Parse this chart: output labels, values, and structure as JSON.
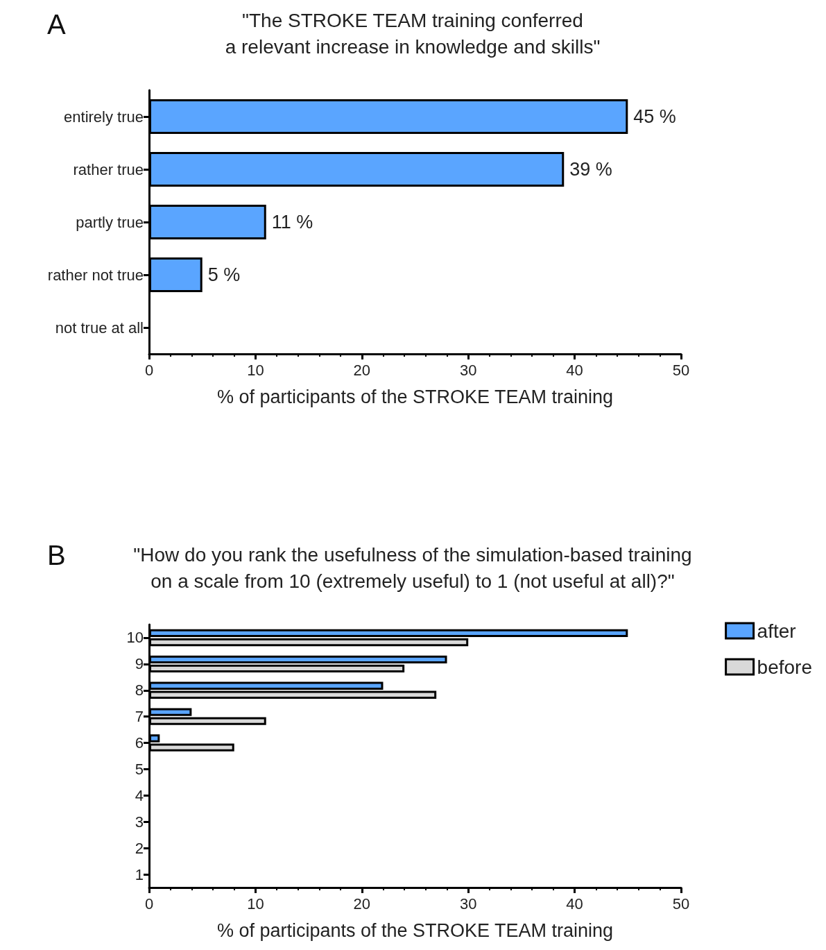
{
  "chart_data": [
    {
      "type": "bar",
      "orientation": "horizontal",
      "title": "\"The STROKE TEAM training conferred\na relevant increase in knowledge and skills\"",
      "annotations": [
        "A"
      ],
      "xlabel": "% of participants of the STROKE TEAM training",
      "categories": [
        "entirely true",
        "rather true",
        "partly true",
        "rather not true",
        "not true at all"
      ],
      "values": [
        45,
        39,
        11,
        5,
        null
      ],
      "color": "#5aa5ff",
      "value_labels": [
        "45 %",
        "39 %",
        "11 %",
        "5 %",
        null
      ],
      "xlim": [
        0,
        50
      ],
      "xticks": [
        0,
        10,
        20,
        30,
        40,
        50
      ],
      "grid": false,
      "legend": false
    },
    {
      "type": "bar",
      "orientation": "horizontal",
      "title": "\"How do you rank the usefulness of the simulation-based training\non a scale from 10 (extremely useful) to 1 (not useful at all)?\"",
      "annotations": [
        "B"
      ],
      "xlabel": "% of participants of the STROKE TEAM training",
      "categories": [
        "10",
        "9",
        "8",
        "7",
        "6",
        "5",
        "4",
        "3",
        "2",
        "1"
      ],
      "series": [
        {
          "name": "after",
          "color": "#5aa5ff",
          "values": [
            45,
            28,
            22,
            4,
            1,
            null,
            null,
            null,
            null,
            null
          ]
        },
        {
          "name": "before",
          "color": "#d9d9d9",
          "values": [
            30,
            24,
            27,
            11,
            8,
            null,
            null,
            null,
            null,
            null
          ]
        }
      ],
      "xlim": [
        0,
        50
      ],
      "xticks": [
        0,
        10,
        20,
        30,
        40,
        50
      ],
      "grid": false,
      "legend": "top right"
    }
  ]
}
